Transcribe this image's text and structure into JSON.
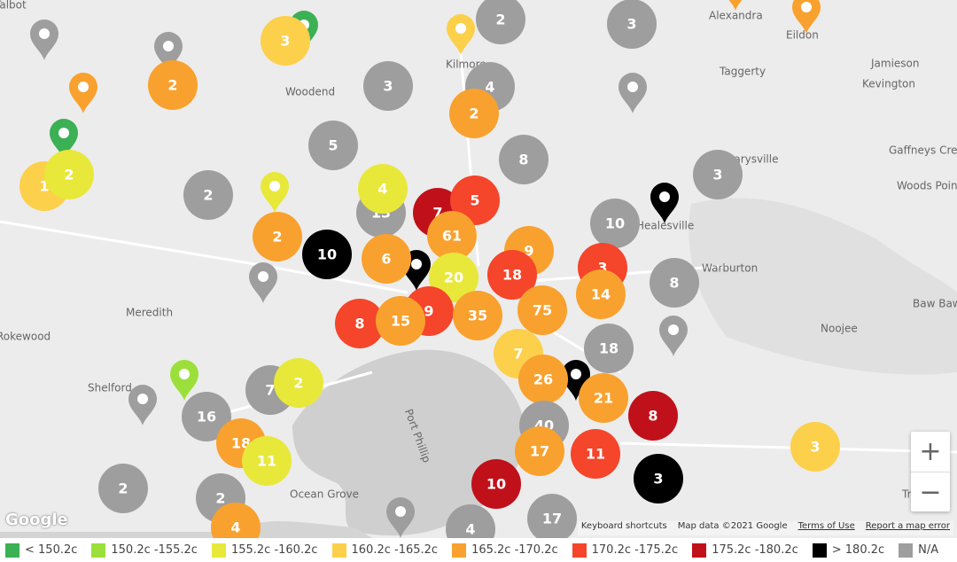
{
  "places": [
    "Talbot",
    "Alexandra",
    "Eildon",
    "Kilmore",
    "Taggerty",
    "Jamieson",
    "Kevington",
    "Woodend",
    "Gaffneys Creek",
    "Marysville",
    "Woods Point",
    "Healesville",
    "Warburton",
    "Meredith",
    "Baw Baw Village",
    "Noojee",
    "Rokewood",
    "Shelford",
    "Port Phillip",
    "Ocean Grove",
    "Trafalgar"
  ],
  "clusters": [
    {
      "count": 2,
      "color": "#9e9e9e"
    },
    {
      "count": 3,
      "color": "#9e9e9e"
    },
    {
      "count": 3,
      "color": "#fcd04a"
    },
    {
      "count": 2,
      "color": "#f9a12e"
    },
    {
      "count": 3,
      "color": "#9e9e9e"
    },
    {
      "count": 4,
      "color": "#9e9e9e"
    },
    {
      "count": 2,
      "color": "#f9a12e"
    },
    {
      "count": 5,
      "color": "#9e9e9e"
    },
    {
      "count": 8,
      "color": "#9e9e9e"
    },
    {
      "count": 1,
      "color": "#fcd04a"
    },
    {
      "count": 2,
      "color": "#e8e83a"
    },
    {
      "count": 3,
      "color": "#9e9e9e"
    },
    {
      "count": 2,
      "color": "#9e9e9e"
    },
    {
      "count": 13,
      "color": "#9e9e9e"
    },
    {
      "count": 4,
      "color": "#e8e83a"
    },
    {
      "count": 7,
      "color": "#c0111b"
    },
    {
      "count": 5,
      "color": "#f5452a"
    },
    {
      "count": 10,
      "color": "#9e9e9e"
    },
    {
      "count": 2,
      "color": "#f9a12e"
    },
    {
      "count": 10,
      "color": "#000000"
    },
    {
      "count": 61,
      "color": "#f9a12e"
    },
    {
      "count": 6,
      "color": "#f9a12e"
    },
    {
      "count": 9,
      "color": "#f9a12e"
    },
    {
      "count": 18,
      "color": "#f5452a"
    },
    {
      "count": 3,
      "color": "#f5452a"
    },
    {
      "count": 8,
      "color": "#9e9e9e"
    },
    {
      "count": 20,
      "color": "#e8e83a"
    },
    {
      "count": 14,
      "color": "#f9a12e"
    },
    {
      "count": 9,
      "color": "#f5452a"
    },
    {
      "count": 35,
      "color": "#f9a12e"
    },
    {
      "count": 75,
      "color": "#f9a12e"
    },
    {
      "count": 8,
      "color": "#f5452a"
    },
    {
      "count": 15,
      "color": "#f9a12e"
    },
    {
      "count": 18,
      "color": "#9e9e9e"
    },
    {
      "count": 7,
      "color": "#fcd04a"
    },
    {
      "count": 26,
      "color": "#f9a12e"
    },
    {
      "count": 7,
      "color": "#9e9e9e"
    },
    {
      "count": 2,
      "color": "#e8e83a"
    },
    {
      "count": 21,
      "color": "#f9a12e"
    },
    {
      "count": 8,
      "color": "#c0111b"
    },
    {
      "count": 16,
      "color": "#9e9e9e"
    },
    {
      "count": 40,
      "color": "#9e9e9e"
    },
    {
      "count": 18,
      "color": "#f9a12e"
    },
    {
      "count": 11,
      "color": "#e8e83a"
    },
    {
      "count": 17,
      "color": "#f9a12e"
    },
    {
      "count": 11,
      "color": "#f5452a"
    },
    {
      "count": 3,
      "color": "#fcd04a"
    },
    {
      "count": 2,
      "color": "#9e9e9e"
    },
    {
      "count": 2,
      "color": "#9e9e9e"
    },
    {
      "count": 10,
      "color": "#c0111b"
    },
    {
      "count": 3,
      "color": "#000000"
    },
    {
      "count": 4,
      "color": "#f9a12e"
    },
    {
      "count": 17,
      "color": "#9e9e9e"
    },
    {
      "count": 4,
      "color": "#9e9e9e"
    }
  ],
  "legend": [
    {
      "label": "< 150.2c",
      "color": "#3cb054"
    },
    {
      "label": "150.2c -155.2c",
      "color": "#9be03a"
    },
    {
      "label": "155.2c -160.2c",
      "color": "#e8e83a"
    },
    {
      "label": "160.2c -165.2c",
      "color": "#fcd04a"
    },
    {
      "label": "165.2c -170.2c",
      "color": "#f9a12e"
    },
    {
      "label": "170.2c -175.2c",
      "color": "#f5452a"
    },
    {
      "label": "175.2c -180.2c",
      "color": "#c0111b"
    },
    {
      "label": "> 180.2c",
      "color": "#000000"
    },
    {
      "label": "N/A",
      "color": "#9e9e9e"
    }
  ],
  "zoom": {
    "in": "+",
    "out": "−"
  },
  "footer": {
    "keyboard_shortcuts": "Keyboard shortcuts",
    "map_data": "Map data ©2021 Google",
    "terms": "Terms of Use",
    "report": "Report a map error"
  },
  "logo": "Google"
}
